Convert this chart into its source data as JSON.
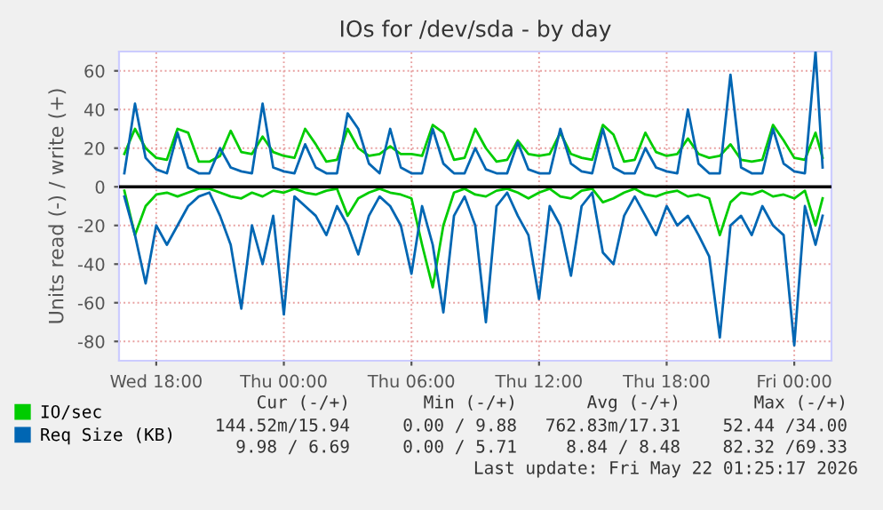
{
  "chart_data": {
    "type": "line",
    "title": "IOs for /dev/sda - by day",
    "ylabel": "Units read (-) / write (+)",
    "x": [
      "2026-05-20T16:30",
      "2026-05-20T17:00",
      "2026-05-20T17:30",
      "2026-05-20T18:00",
      "2026-05-20T18:30",
      "2026-05-20T19:00",
      "2026-05-20T19:30",
      "2026-05-20T20:00",
      "2026-05-20T20:30",
      "2026-05-20T21:00",
      "2026-05-20T21:30",
      "2026-05-20T22:00",
      "2026-05-20T22:30",
      "2026-05-20T23:00",
      "2026-05-20T23:30",
      "2026-05-21T00:00",
      "2026-05-21T00:30",
      "2026-05-21T01:00",
      "2026-05-21T01:30",
      "2026-05-21T02:00",
      "2026-05-21T02:30",
      "2026-05-21T03:00",
      "2026-05-21T03:30",
      "2026-05-21T04:00",
      "2026-05-21T04:30",
      "2026-05-21T05:00",
      "2026-05-21T05:30",
      "2026-05-21T06:00",
      "2026-05-21T06:30",
      "2026-05-21T07:00",
      "2026-05-21T07:30",
      "2026-05-21T08:00",
      "2026-05-21T08:30",
      "2026-05-21T09:00",
      "2026-05-21T09:30",
      "2026-05-21T10:00",
      "2026-05-21T10:30",
      "2026-05-21T11:00",
      "2026-05-21T11:30",
      "2026-05-21T12:00",
      "2026-05-21T12:30",
      "2026-05-21T13:00",
      "2026-05-21T13:30",
      "2026-05-21T14:00",
      "2026-05-21T14:30",
      "2026-05-21T15:00",
      "2026-05-21T15:30",
      "2026-05-21T16:00",
      "2026-05-21T16:30",
      "2026-05-21T17:00",
      "2026-05-21T17:30",
      "2026-05-21T18:00",
      "2026-05-21T18:30",
      "2026-05-21T19:00",
      "2026-05-21T19:30",
      "2026-05-21T20:00",
      "2026-05-21T20:30",
      "2026-05-21T21:00",
      "2026-05-21T21:30",
      "2026-05-21T22:00",
      "2026-05-21T22:30",
      "2026-05-21T23:00",
      "2026-05-21T23:30",
      "2026-05-22T00:00",
      "2026-05-22T00:30",
      "2026-05-22T01:00",
      "2026-05-22T01:20"
    ],
    "series": [
      {
        "name": "IO/sec",
        "color": "#00cc00",
        "values": [
          17,
          30,
          20,
          15,
          14,
          30,
          28,
          13,
          13,
          16,
          29,
          18,
          17,
          26,
          18,
          16,
          15,
          30,
          22,
          13,
          14,
          30,
          20,
          16,
          17,
          21,
          17,
          17,
          16,
          32,
          28,
          14,
          15,
          30,
          20,
          13,
          14,
          24,
          17,
          16,
          17,
          28,
          17,
          15,
          14,
          32,
          27,
          13,
          14,
          28,
          18,
          16,
          17,
          25,
          17,
          15,
          16,
          22,
          14,
          13,
          14,
          32,
          24,
          15,
          14,
          28,
          15
        ]
      },
      {
        "color": "#00cc00",
        "values": [
          -2,
          -25,
          -10,
          -4,
          -3,
          -5,
          -3,
          -1,
          -1,
          -3,
          -5,
          -6,
          -3,
          -5,
          -2,
          -3,
          -1,
          -3,
          -4,
          -2,
          -1,
          -15,
          -6,
          -3,
          -1,
          -3,
          -4,
          -6,
          -30,
          -52,
          -20,
          -3,
          -1,
          -4,
          -5,
          -2,
          -1,
          -3,
          -6,
          -3,
          -1,
          -5,
          -6,
          -2,
          -1,
          -8,
          -6,
          -3,
          -1,
          -4,
          -5,
          -3,
          -2,
          -5,
          -4,
          -6,
          -25,
          -8,
          -3,
          -4,
          -2,
          -5,
          -4,
          -6,
          -2,
          -20,
          -6
        ]
      },
      {
        "name": "Req Size (KB)",
        "color": "#0066b3",
        "values": [
          7,
          43,
          15,
          9,
          7,
          28,
          10,
          7,
          7,
          20,
          10,
          8,
          7,
          43,
          10,
          8,
          7,
          22,
          10,
          7,
          7,
          38,
          30,
          12,
          7,
          30,
          10,
          7,
          7,
          30,
          12,
          7,
          7,
          20,
          9,
          7,
          7,
          23,
          9,
          7,
          7,
          30,
          12,
          8,
          7,
          30,
          10,
          7,
          7,
          20,
          10,
          8,
          7,
          40,
          12,
          7,
          7,
          58,
          10,
          7,
          7,
          30,
          12,
          8,
          7,
          70,
          10
        ]
      },
      {
        "color": "#0066b3",
        "values": [
          -5,
          -25,
          -50,
          -20,
          -30,
          -20,
          -10,
          -5,
          -3,
          -15,
          -30,
          -63,
          -20,
          -40,
          -15,
          -66,
          -5,
          -10,
          -15,
          -25,
          -10,
          -20,
          -35,
          -15,
          -5,
          -10,
          -20,
          -45,
          -10,
          -30,
          -65,
          -15,
          -5,
          -20,
          -70,
          -10,
          -3,
          -15,
          -25,
          -58,
          -10,
          -20,
          -46,
          -10,
          -3,
          -34,
          -40,
          -15,
          -5,
          -15,
          -25,
          -10,
          -20,
          -15,
          -25,
          -36,
          -78,
          -20,
          -15,
          -25,
          -10,
          -20,
          -25,
          -82,
          -10,
          -30,
          -15
        ]
      }
    ],
    "xlim": [
      "2026-05-20T16:15",
      "2026-05-22T01:45"
    ],
    "xticks": [
      {
        "value": "2026-05-20T18:00",
        "label": "Wed 18:00"
      },
      {
        "value": "2026-05-21T00:00",
        "label": "Thu 00:00"
      },
      {
        "value": "2026-05-21T06:00",
        "label": "Thu 06:00"
      },
      {
        "value": "2026-05-21T12:00",
        "label": "Thu 12:00"
      },
      {
        "value": "2026-05-21T18:00",
        "label": "Thu 18:00"
      },
      {
        "value": "2026-05-22T00:00",
        "label": "Fri 00:00"
      }
    ],
    "ylim": [
      -90,
      70
    ],
    "yticks": [
      -80,
      -60,
      -40,
      -20,
      0,
      20,
      40,
      60
    ],
    "ref_lines": [
      {
        "axis": "y",
        "value": 0,
        "color": "#000000"
      }
    ],
    "grid": true,
    "legend": "bottom",
    "line_style": "solid",
    "marker": "none",
    "annotations": [
      "Cur (-/+)",
      "Min (-/+)",
      "Avg (-/+)",
      "Max (-/+)",
      "144.52m/15.94",
      "0.00 / 9.88",
      "762.83m/17.31",
      "52.44 /34.00",
      "9.98 / 6.69",
      "0.00 / 5.71",
      "8.84 / 8.48",
      "82.32 /69.33",
      "Last update: Fri May 22 01:25:17 2026"
    ]
  }
}
